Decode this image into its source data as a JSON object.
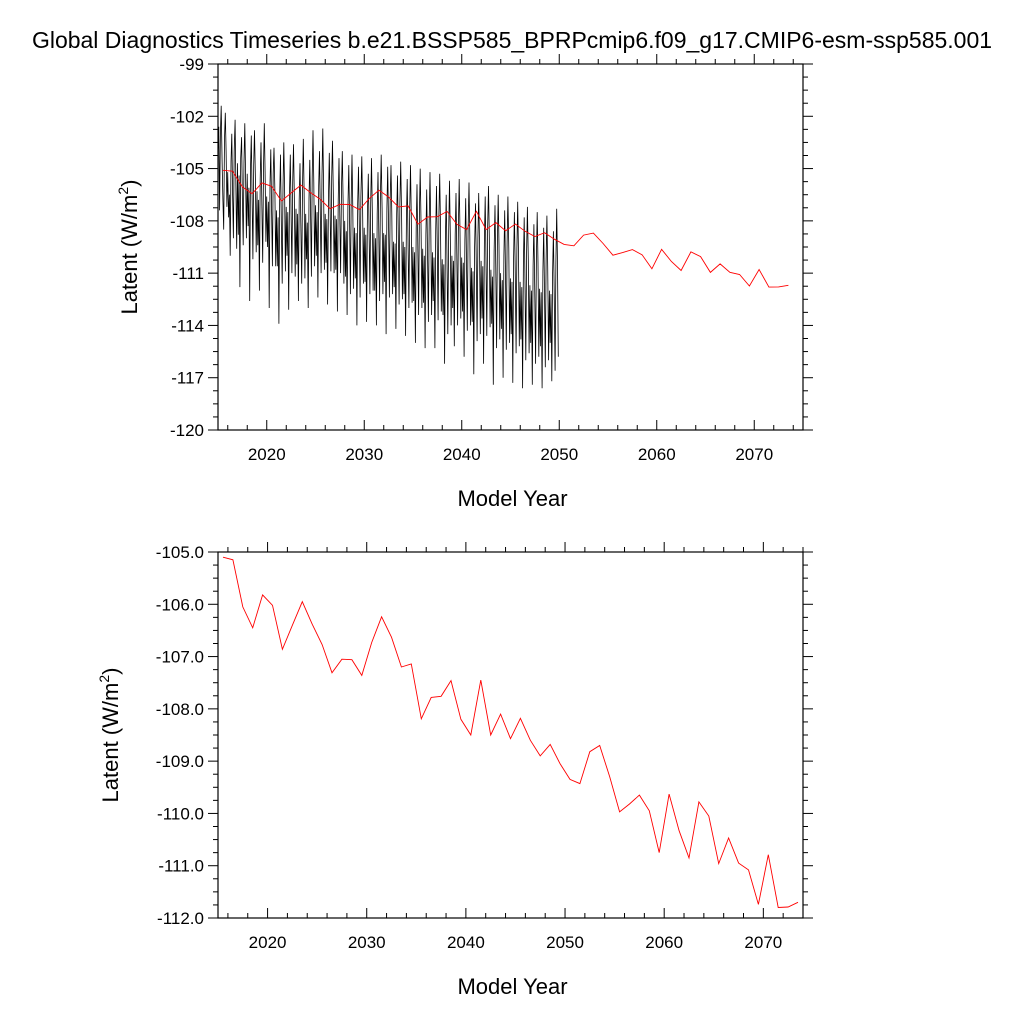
{
  "figure": {
    "title": "Global Diagnostics Timeseries b.e21.BSSP585_BPRPcmip6.f09_g17.CMIP6-esm-ssp585.001"
  },
  "colors": {
    "monthly": "#000000",
    "annual": "#ff0000",
    "axes": "#000000"
  },
  "chart_data": [
    {
      "type": "line",
      "xlabel": "Model Year",
      "ylabel": "Latent (W/m2)",
      "xlim": [
        2015.0,
        2075.0
      ],
      "ylim": [
        -120,
        -99
      ],
      "xticks": [
        2020,
        2030,
        2040,
        2050,
        2060,
        2070
      ],
      "xtick_labels": [
        "2020",
        "2030",
        "2040",
        "2050",
        "2060",
        "2070"
      ],
      "yticks": [
        -99,
        -102,
        -105,
        -108,
        -111,
        -114,
        -117,
        -120
      ],
      "ytick_labels": [
        "-99",
        "-102",
        "-105",
        "-108",
        "-111",
        "-114",
        "-117",
        "-120"
      ],
      "grid": false,
      "series": [
        {
          "color": "#000000",
          "x_start": 2015.0,
          "x_step": 0.0833,
          "values_note_free": true,
          "values": [
            -104.2,
            -102.6,
            -107.4,
            -103.0,
            -101.4,
            -104.6,
            -106.8,
            -108.5,
            -103.3,
            -101.8,
            -104.0,
            -107.2,
            -105.2,
            -107.8,
            -106.5,
            -110.0,
            -104.6,
            -103.0,
            -106.5,
            -109.0,
            -104.0,
            -102.2,
            -106.0,
            -109.6,
            -104.7,
            -108.8,
            -105.4,
            -111.8,
            -104.4,
            -103.2,
            -106.8,
            -109.4,
            -104.6,
            -102.4,
            -105.5,
            -109.0,
            -105.3,
            -108.3,
            -106.1,
            -112.6,
            -105.0,
            -103.1,
            -106.6,
            -110.2,
            -104.8,
            -102.8,
            -105.6,
            -109.8,
            -106.3,
            -109.4,
            -106.8,
            -112.0,
            -105.6,
            -103.5,
            -107.2,
            -110.4,
            -105.0,
            -102.4,
            -105.2,
            -109.2,
            -106.6,
            -109.5,
            -106.9,
            -113.0,
            -105.9,
            -103.9,
            -107.4,
            -110.6,
            -105.3,
            -103.8,
            -106.3,
            -110.6,
            -107.4,
            -110.6,
            -107.8,
            -113.9,
            -106.5,
            -104.2,
            -108.0,
            -111.6,
            -106.1,
            -103.5,
            -106.2,
            -110.9,
            -107.2,
            -110.0,
            -107.5,
            -113.1,
            -106.4,
            -104.2,
            -107.6,
            -111.0,
            -105.8,
            -103.6,
            -106.5,
            -111.2,
            -107.3,
            -110.5,
            -107.6,
            -112.6,
            -106.8,
            -104.7,
            -108.1,
            -111.6,
            -106.1,
            -103.3,
            -106.3,
            -111.3,
            -107.6,
            -110.2,
            -108.1,
            -113.0,
            -106.7,
            -104.5,
            -107.7,
            -111.2,
            -105.5,
            -102.8,
            -105.8,
            -110.6,
            -107.1,
            -110.0,
            -107.5,
            -112.4,
            -106.0,
            -104.0,
            -107.6,
            -111.0,
            -105.4,
            -102.7,
            -106.2,
            -110.8,
            -107.6,
            -110.4,
            -107.9,
            -112.8,
            -106.6,
            -104.1,
            -107.3,
            -110.9,
            -105.5,
            -103.4,
            -106.4,
            -111.0,
            -107.7,
            -110.8,
            -107.9,
            -113.2,
            -106.9,
            -104.4,
            -107.7,
            -111.0,
            -106.1,
            -104.0,
            -106.8,
            -111.6,
            -108.0,
            -111.2,
            -108.6,
            -113.4,
            -107.2,
            -104.8,
            -108.1,
            -112.2,
            -106.8,
            -104.2,
            -107.3,
            -111.9,
            -108.4,
            -111.3,
            -108.7,
            -114.0,
            -107.0,
            -104.9,
            -108.3,
            -112.4,
            -106.6,
            -104.3,
            -107.2,
            -111.6,
            -108.4,
            -111.5,
            -108.8,
            -113.8,
            -107.7,
            -105.3,
            -108.6,
            -112.2,
            -107.0,
            -104.4,
            -107.4,
            -112.0,
            -108.7,
            -112.0,
            -109.0,
            -114.0,
            -107.6,
            -105.2,
            -108.7,
            -112.6,
            -106.6,
            -104.2,
            -107.3,
            -112.2,
            -108.7,
            -111.5,
            -108.8,
            -114.5,
            -107.3,
            -104.9,
            -108.4,
            -112.4,
            -106.7,
            -104.8,
            -107.6,
            -112.2,
            -109.2,
            -111.8,
            -109.3,
            -114.2,
            -107.6,
            -105.4,
            -108.9,
            -112.8,
            -107.0,
            -104.6,
            -107.7,
            -112.5,
            -109.2,
            -112.2,
            -109.5,
            -114.6,
            -108.0,
            -105.6,
            -109.0,
            -113.0,
            -107.4,
            -104.8,
            -107.8,
            -112.7,
            -109.5,
            -112.6,
            -109.8,
            -115.0,
            -108.4,
            -105.9,
            -109.4,
            -113.4,
            -107.6,
            -105.0,
            -108.0,
            -113.0,
            -109.6,
            -112.7,
            -110.0,
            -115.3,
            -108.8,
            -106.2,
            -109.7,
            -113.8,
            -108.0,
            -105.2,
            -108.5,
            -113.4,
            -109.8,
            -112.6,
            -110.1,
            -115.3,
            -108.6,
            -106.0,
            -109.6,
            -113.7,
            -107.7,
            -105.3,
            -108.3,
            -113.2,
            -110.2,
            -113.4,
            -110.5,
            -116.2,
            -109.0,
            -106.5,
            -110.2,
            -114.5,
            -108.6,
            -105.7,
            -108.8,
            -114.0,
            -110.0,
            -113.0,
            -110.3,
            -115.2,
            -108.8,
            -106.4,
            -109.9,
            -114.0,
            -108.3,
            -105.6,
            -108.6,
            -113.6,
            -110.1,
            -113.2,
            -110.4,
            -115.8,
            -109.1,
            -106.7,
            -110.3,
            -114.3,
            -108.5,
            -105.8,
            -108.8,
            -114.0,
            -110.7,
            -113.8,
            -110.9,
            -116.8,
            -109.5,
            -107.0,
            -110.6,
            -114.9,
            -109.0,
            -106.4,
            -109.3,
            -114.5,
            -110.3,
            -113.6,
            -110.6,
            -116.2,
            -109.1,
            -106.6,
            -110.3,
            -114.6,
            -108.5,
            -106.0,
            -108.9,
            -114.1,
            -110.8,
            -113.9,
            -111.2,
            -117.4,
            -109.8,
            -107.1,
            -110.8,
            -115.3,
            -109.2,
            -106.5,
            -109.4,
            -114.8,
            -111.0,
            -114.2,
            -111.4,
            -117.0,
            -110.0,
            -107.4,
            -111.0,
            -115.4,
            -109.3,
            -106.6,
            -109.6,
            -115.0,
            -111.3,
            -114.5,
            -111.5,
            -117.3,
            -110.1,
            -107.5,
            -111.2,
            -115.6,
            -109.6,
            -106.9,
            -109.9,
            -115.2,
            -111.5,
            -114.8,
            -111.8,
            -117.6,
            -110.4,
            -107.8,
            -111.5,
            -116.0,
            -109.8,
            -107.2,
            -110.2,
            -115.6,
            -111.7,
            -115.0,
            -112.0,
            -117.4,
            -110.6,
            -108.2,
            -111.8,
            -116.2,
            -110.1,
            -107.5,
            -110.4,
            -115.8,
            -111.9,
            -115.2,
            -112.1,
            -117.6,
            -110.9,
            -108.4,
            -112.0,
            -116.4,
            -110.3,
            -107.7,
            -110.6,
            -116.0,
            -112.0,
            -115.0,
            -112.2,
            -117.2,
            -111.0,
            -108.6,
            -112.1,
            -116.6,
            -110.4,
            -107.3,
            -110.5,
            -115.8
          ]
        },
        {
          "color": "#ff0000",
          "x": [
            2015.5,
            2016.5,
            2017.5,
            2018.5,
            2019.5,
            2020.5,
            2021.5,
            2022.5,
            2023.5,
            2024.5,
            2025.5,
            2026.5,
            2027.5,
            2028.5,
            2029.5,
            2030.5,
            2031.5,
            2032.5,
            2033.5,
            2034.5,
            2035.5,
            2036.5,
            2037.5,
            2038.5,
            2039.5,
            2040.5,
            2041.5,
            2042.5,
            2043.5,
            2044.5,
            2045.5,
            2046.5,
            2047.5,
            2048.5,
            2049.5,
            2050.5,
            2051.5,
            2052.5,
            2053.5,
            2054.5,
            2055.5,
            2056.5,
            2057.5,
            2058.5,
            2059.5,
            2060.5,
            2061.5,
            2062.5,
            2063.5,
            2064.5,
            2065.5,
            2066.5,
            2067.5,
            2068.5,
            2069.5,
            2070.5,
            2071.5,
            2072.5,
            2073.5
          ],
          "values": [
            -105.1,
            -105.15,
            -106.05,
            -106.45,
            -105.82,
            -106.02,
            -106.86,
            -106.4,
            -105.95,
            -106.38,
            -106.77,
            -107.31,
            -107.05,
            -107.06,
            -107.36,
            -106.73,
            -106.24,
            -106.63,
            -107.2,
            -107.14,
            -108.19,
            -107.78,
            -107.76,
            -107.46,
            -108.2,
            -108.5,
            -107.45,
            -108.5,
            -108.1,
            -108.57,
            -108.18,
            -108.6,
            -108.9,
            -108.68,
            -109.05,
            -109.35,
            -109.43,
            -108.82,
            -108.7,
            -109.3,
            -109.97,
            -109.82,
            -109.65,
            -109.95,
            -110.75,
            -109.63,
            -110.33,
            -110.85,
            -109.78,
            -110.05,
            -110.96,
            -110.47,
            -110.95,
            -111.08,
            -111.74,
            -110.79,
            -111.8,
            -111.79,
            -111.7
          ]
        }
      ]
    },
    {
      "type": "line",
      "xlabel": "Model Year",
      "ylabel": "Latent (W/m2)",
      "xlim": [
        2015.0,
        2074.0
      ],
      "ylim": [
        -112.0,
        -105.0
      ],
      "xticks": [
        2020,
        2030,
        2040,
        2050,
        2060,
        2070
      ],
      "xtick_labels": [
        "2020",
        "2030",
        "2040",
        "2050",
        "2060",
        "2070"
      ],
      "yticks": [
        -105,
        -106,
        -107,
        -108,
        -109,
        -110,
        -111,
        -112
      ],
      "ytick_labels": [
        "-105.0",
        "-106.0",
        "-107.0",
        "-108.0",
        "-109.0",
        "-110.0",
        "-111.0",
        "-112.0"
      ],
      "grid": false,
      "series": [
        {
          "color": "#ff0000",
          "x": [
            2015.5,
            2016.5,
            2017.5,
            2018.5,
            2019.5,
            2020.5,
            2021.5,
            2022.5,
            2023.5,
            2024.5,
            2025.5,
            2026.5,
            2027.5,
            2028.5,
            2029.5,
            2030.5,
            2031.5,
            2032.5,
            2033.5,
            2034.5,
            2035.5,
            2036.5,
            2037.5,
            2038.5,
            2039.5,
            2040.5,
            2041.5,
            2042.5,
            2043.5,
            2044.5,
            2045.5,
            2046.5,
            2047.5,
            2048.5,
            2049.5,
            2050.5,
            2051.5,
            2052.5,
            2053.5,
            2054.5,
            2055.5,
            2056.5,
            2057.5,
            2058.5,
            2059.5,
            2060.5,
            2061.5,
            2062.5,
            2063.5,
            2064.5,
            2065.5,
            2066.5,
            2067.5,
            2068.5,
            2069.5,
            2070.5,
            2071.5,
            2072.5,
            2073.5
          ],
          "values": [
            -105.1,
            -105.15,
            -106.05,
            -106.45,
            -105.82,
            -106.02,
            -106.86,
            -106.4,
            -105.95,
            -106.38,
            -106.77,
            -107.31,
            -107.05,
            -107.06,
            -107.36,
            -106.73,
            -106.24,
            -106.63,
            -107.2,
            -107.14,
            -108.19,
            -107.78,
            -107.76,
            -107.46,
            -108.2,
            -108.5,
            -107.45,
            -108.5,
            -108.1,
            -108.57,
            -108.18,
            -108.6,
            -108.9,
            -108.68,
            -109.05,
            -109.35,
            -109.43,
            -108.82,
            -108.7,
            -109.3,
            -109.97,
            -109.82,
            -109.65,
            -109.95,
            -110.75,
            -109.63,
            -110.33,
            -110.85,
            -109.78,
            -110.05,
            -110.96,
            -110.47,
            -110.95,
            -111.08,
            -111.74,
            -110.79,
            -111.8,
            -111.79,
            -111.7
          ]
        }
      ]
    }
  ]
}
